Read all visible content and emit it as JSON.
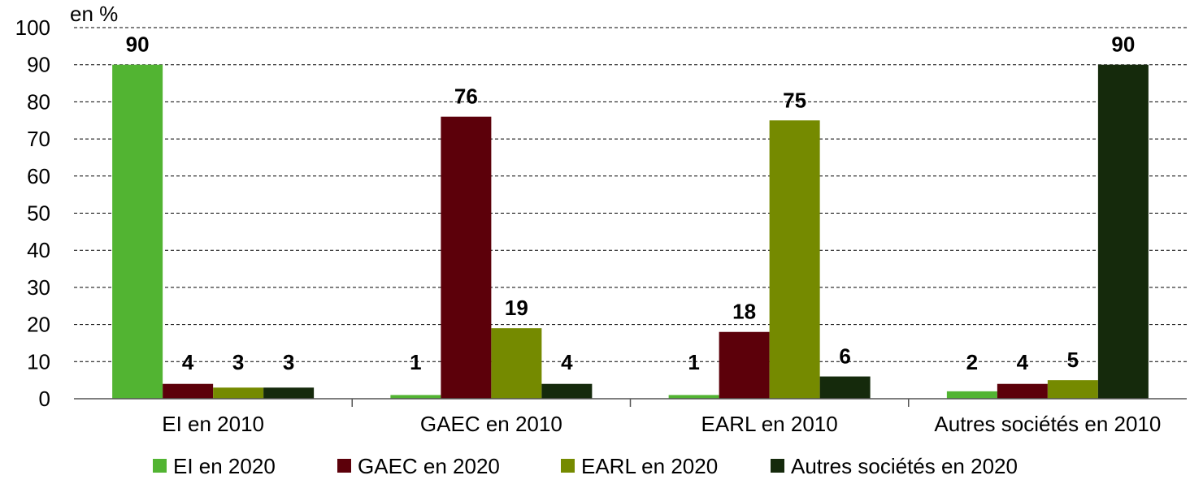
{
  "chart_data": {
    "type": "bar",
    "unit_label": "en %",
    "categories": [
      "EI en 2010",
      "GAEC en 2010",
      "EARL en 2010",
      "Autres sociétés en 2010"
    ],
    "series": [
      {
        "name": "EI en 2020",
        "color": "#52b432",
        "values": [
          90,
          1,
          1,
          2
        ]
      },
      {
        "name": "GAEC en  2020",
        "color": "#5c000a",
        "values": [
          4,
          76,
          18,
          4
        ]
      },
      {
        "name": "EARL en 2020",
        "color": "#758a00",
        "values": [
          3,
          19,
          75,
          5
        ]
      },
      {
        "name": "Autres sociétés en 2020",
        "color": "#152a0c",
        "values": [
          3,
          4,
          6,
          90
        ]
      }
    ],
    "ylim": [
      0,
      100
    ],
    "yticks": [
      0,
      10,
      20,
      30,
      40,
      50,
      60,
      70,
      80,
      90,
      100
    ],
    "grid": "dashed horizontal",
    "legend": "bottom",
    "data_labels": true
  }
}
